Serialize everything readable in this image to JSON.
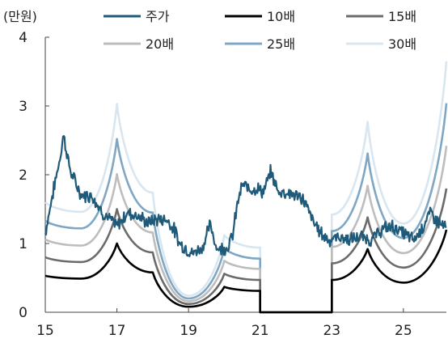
{
  "chart_data": {
    "type": "line",
    "unit_label": "(만원)",
    "x_ticks": [
      "15",
      "17",
      "19",
      "21",
      "23",
      "25"
    ],
    "x_tick_values": [
      15,
      17,
      19,
      21,
      23,
      25
    ],
    "xlim": [
      15,
      26.2
    ],
    "y_ticks": [
      "0",
      "1",
      "2",
      "3",
      "4"
    ],
    "y_tick_values": [
      0,
      1,
      2,
      3,
      4
    ],
    "ylim": [
      0,
      4
    ],
    "grid": false,
    "legend_position": "top",
    "multiplier_anchor_x": [
      15,
      16,
      17,
      18,
      19,
      20,
      21,
      23,
      24,
      25,
      26.2
    ],
    "gap_x": [
      21,
      23
    ],
    "series": [
      {
        "name": "주가",
        "color": "#1f5a7a",
        "style": "price",
        "values": []
      },
      {
        "name": "10배",
        "color": "#000000",
        "style": "band",
        "values": [
          0.53,
          0.49,
          1.0,
          0.58,
          0.08,
          0.37,
          0.31,
          0.47,
          0.92,
          0.43,
          1.2
        ]
      },
      {
        "name": "15배",
        "color": "#6b6b6b",
        "style": "band",
        "values": [
          0.8,
          0.73,
          1.5,
          0.87,
          0.12,
          0.56,
          0.47,
          0.71,
          1.38,
          0.65,
          1.8
        ]
      },
      {
        "name": "20배",
        "color": "#bdbdbd",
        "style": "band",
        "values": [
          1.06,
          0.97,
          2.01,
          1.16,
          0.16,
          0.75,
          0.63,
          0.95,
          1.84,
          0.86,
          2.42
        ]
      },
      {
        "name": "25배",
        "color": "#7fa7c4",
        "style": "band",
        "values": [
          1.33,
          1.22,
          2.52,
          1.45,
          0.2,
          0.93,
          0.78,
          1.18,
          2.31,
          1.08,
          3.04
        ]
      },
      {
        "name": "30배",
        "color": "#d7e6f0",
        "style": "band",
        "values": [
          1.6,
          1.46,
          3.03,
          1.74,
          0.24,
          1.12,
          0.94,
          1.42,
          2.77,
          1.29,
          3.65
        ]
      }
    ],
    "price_anchor_x": [
      15,
      15.2,
      15.45,
      15.5,
      15.7,
      16.0,
      16.3,
      16.6,
      17.0,
      17.3,
      17.6,
      17.85,
      18.1,
      18.4,
      18.6,
      18.75,
      18.95,
      19.1,
      19.4,
      19.6,
      19.8,
      20.1,
      20.25,
      20.35,
      20.5,
      20.7,
      20.9,
      21.1,
      21.3,
      21.5,
      21.65,
      21.9,
      22.2,
      22.5,
      22.75,
      22.95,
      23.2,
      23.5,
      23.8,
      24.1,
      24.4,
      24.7,
      25.0,
      25.3,
      25.55,
      25.75,
      26.0,
      26.2
    ],
    "price_anchor_y": [
      1.15,
      1.7,
      2.35,
      2.6,
      2.05,
      1.7,
      1.7,
      1.45,
      1.25,
      1.45,
      1.4,
      1.3,
      1.35,
      1.35,
      1.2,
      1.0,
      0.92,
      0.85,
      0.95,
      1.28,
      0.92,
      0.95,
      1.15,
      1.55,
      1.85,
      1.8,
      1.8,
      1.75,
      2.05,
      1.75,
      1.75,
      1.72,
      1.65,
      1.3,
      1.12,
      1.05,
      1.1,
      1.05,
      1.1,
      1.05,
      1.2,
      1.25,
      1.15,
      1.05,
      1.25,
      1.45,
      1.3,
      1.22
    ],
    "legend": [
      {
        "label": "주가",
        "color": "#1f5a7a"
      },
      {
        "label": "10배",
        "color": "#000000"
      },
      {
        "label": "15배",
        "color": "#6b6b6b"
      },
      {
        "label": "20배",
        "color": "#bdbdbd"
      },
      {
        "label": "25배",
        "color": "#7fa7c4"
      },
      {
        "label": "30배",
        "color": "#d7e6f0"
      }
    ]
  }
}
